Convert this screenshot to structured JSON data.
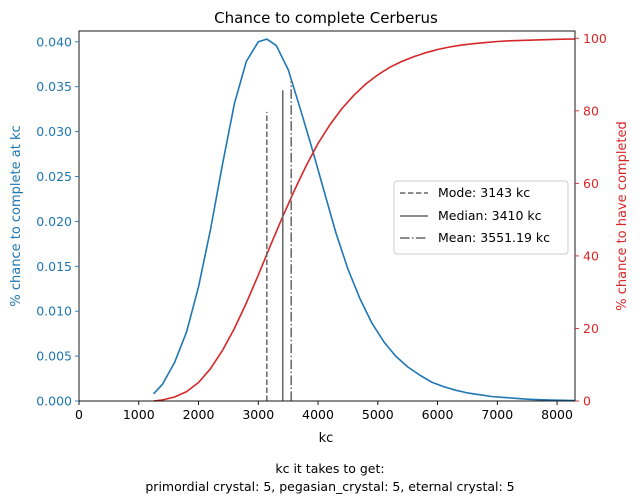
{
  "chart_data": {
    "type": "line",
    "title": "Chance to complete Cerberus",
    "xlabel": "kc",
    "ylabel_left": "% chance to complete at kc",
    "ylabel_right": "% chance to have completed",
    "xlim": [
      0,
      8300
    ],
    "ylim_left": [
      0,
      0.0412
    ],
    "ylim_right": [
      0,
      102
    ],
    "x_ticks": [
      0,
      1000,
      2000,
      3000,
      4000,
      5000,
      6000,
      7000,
      8000
    ],
    "y_left_ticks": [
      "0.000",
      "0.005",
      "0.010",
      "0.015",
      "0.020",
      "0.025",
      "0.030",
      "0.035",
      "0.040"
    ],
    "y_right_ticks": [
      0,
      20,
      40,
      60,
      80,
      100
    ],
    "colors": {
      "left": "#1f77b4",
      "right": "#d62728",
      "stats": "#666666"
    },
    "series": [
      {
        "axis": "left",
        "x": [
          1250,
          1400,
          1600,
          1800,
          2000,
          2200,
          2400,
          2600,
          2800,
          3000,
          3143,
          3300,
          3500,
          3700,
          3900,
          4100,
          4300,
          4500,
          4700,
          4900,
          5100,
          5300,
          5500,
          5700,
          5900,
          6100,
          6300,
          6500,
          6700,
          6900,
          7100,
          7300,
          7500,
          7700,
          7900,
          8100,
          8300
        ],
        "values": [
          0.0008,
          0.0019,
          0.0043,
          0.0077,
          0.0127,
          0.0191,
          0.0263,
          0.0331,
          0.0378,
          0.04,
          0.0403,
          0.0396,
          0.0369,
          0.0326,
          0.0281,
          0.0234,
          0.0187,
          0.0147,
          0.0114,
          0.0087,
          0.0066,
          0.005,
          0.0038,
          0.0029,
          0.0021,
          0.0016,
          0.0012,
          0.0009,
          0.0007,
          0.0005,
          0.0004,
          0.0003,
          0.0002,
          0.00015,
          0.0001,
          8e-05,
          5e-05
        ]
      },
      {
        "axis": "right",
        "x": [
          1250,
          1400,
          1600,
          1800,
          2000,
          2200,
          2400,
          2600,
          2800,
          3000,
          3200,
          3400,
          3600,
          3800,
          4000,
          4200,
          4400,
          4600,
          4800,
          5000,
          5200,
          5400,
          5600,
          5800,
          6000,
          6200,
          6400,
          6600,
          6800,
          7000,
          7200,
          7400,
          7600,
          7800,
          8000,
          8300
        ],
        "values": [
          0,
          0.3,
          1.1,
          2.6,
          5.1,
          8.9,
          13.9,
          20.0,
          27.0,
          34.7,
          42.7,
          50.5,
          57.9,
          64.8,
          71.0,
          76.2,
          80.6,
          84.3,
          87.4,
          89.9,
          92.0,
          93.6,
          94.9,
          96.0,
          96.9,
          97.6,
          98.1,
          98.5,
          98.8,
          99.1,
          99.3,
          99.4,
          99.5,
          99.6,
          99.7,
          99.8
        ]
      }
    ],
    "stat_lines": [
      {
        "label": "Mode: 3143 kc",
        "x": 3143,
        "y_top": 0.0322,
        "style": "dashed"
      },
      {
        "label": "Median: 3410 kc",
        "x": 3410,
        "y_top": 0.0346,
        "style": "solid"
      },
      {
        "label": "Mean: 3551.19 kc",
        "x": 3551,
        "y_top": 0.0356,
        "style": "dashdot"
      }
    ],
    "legend": "center-right",
    "grid": false
  },
  "caption": {
    "line1": "kc it takes to get:",
    "line2": "primordial crystal: 5,  pegasian_crystal: 5,  eternal crystal: 5"
  }
}
